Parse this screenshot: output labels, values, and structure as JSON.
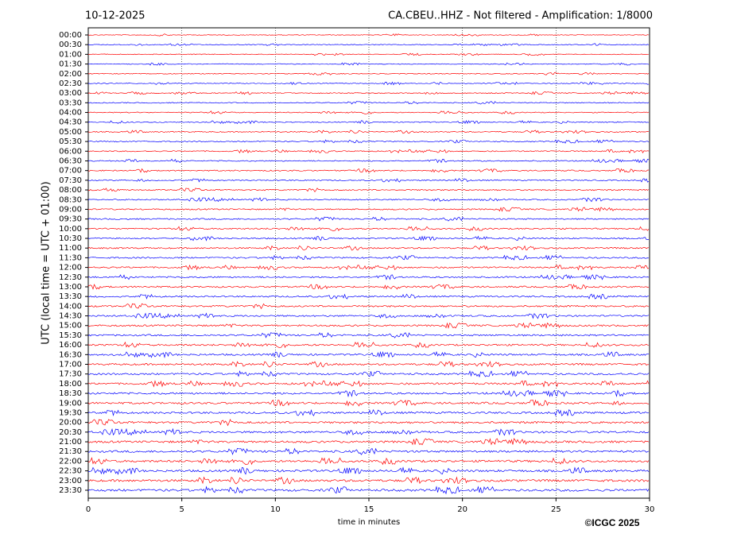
{
  "chart_data": {
    "type": "helicorder",
    "date": "10-12-2025",
    "title": "CA.CBEU..HHZ - Not filtered - Amplification: 1/8000",
    "ylabel": "UTC (local time = UTC + 01:00)",
    "xlabel": "time in minutes",
    "credit": "©ICGC 2025",
    "categories": [
      "00:00",
      "00:30",
      "01:00",
      "01:30",
      "02:00",
      "02:30",
      "03:00",
      "03:30",
      "04:00",
      "04:30",
      "05:00",
      "05:30",
      "06:00",
      "06:30",
      "07:00",
      "07:30",
      "08:00",
      "08:30",
      "09:00",
      "09:30",
      "10:00",
      "10:30",
      "11:00",
      "11:30",
      "12:00",
      "12:30",
      "13:00",
      "13:30",
      "14:00",
      "14:30",
      "15:00",
      "15:30",
      "16:00",
      "16:30",
      "17:00",
      "17:30",
      "18:00",
      "18:30",
      "19:00",
      "19:30",
      "20:00",
      "20:30",
      "21:00",
      "21:30",
      "22:00",
      "22:30",
      "23:00",
      "23:30"
    ],
    "colors": [
      "#ff0000",
      "#0000ff"
    ],
    "xlim": [
      0,
      30
    ],
    "xticks": [
      0,
      5,
      10,
      15,
      20,
      25,
      30
    ],
    "grid": true
  }
}
